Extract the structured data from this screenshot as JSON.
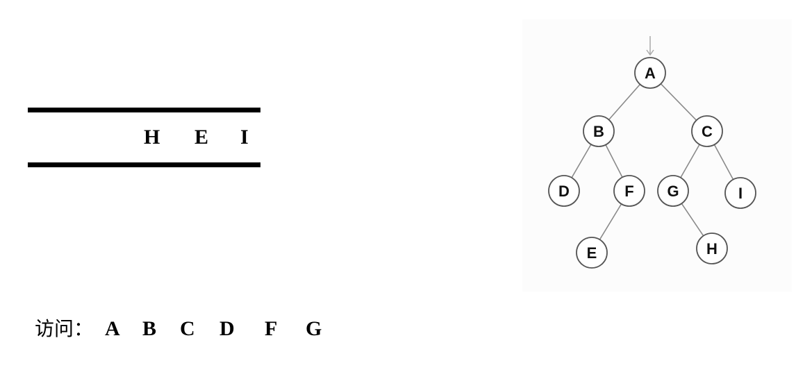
{
  "queue": {
    "items": [
      "H",
      "E",
      "I"
    ]
  },
  "visit": {
    "label": "访问：",
    "items": [
      "A",
      "B",
      "C",
      "D",
      "F",
      "G"
    ]
  },
  "tree": {
    "root": "A",
    "nodes": [
      "A",
      "B",
      "C",
      "D",
      "F",
      "G",
      "I",
      "E",
      "H"
    ],
    "edges": [
      [
        "A",
        "B"
      ],
      [
        "A",
        "C"
      ],
      [
        "B",
        "D"
      ],
      [
        "B",
        "F"
      ],
      [
        "C",
        "G"
      ],
      [
        "C",
        "I"
      ],
      [
        "F",
        "E"
      ],
      [
        "G",
        "H"
      ]
    ],
    "colors": {
      "node_stroke": "#555555",
      "edge": "#8a8a8a",
      "entry_arrow": "#aaaaaa",
      "node_fill": "#ffffff"
    }
  }
}
